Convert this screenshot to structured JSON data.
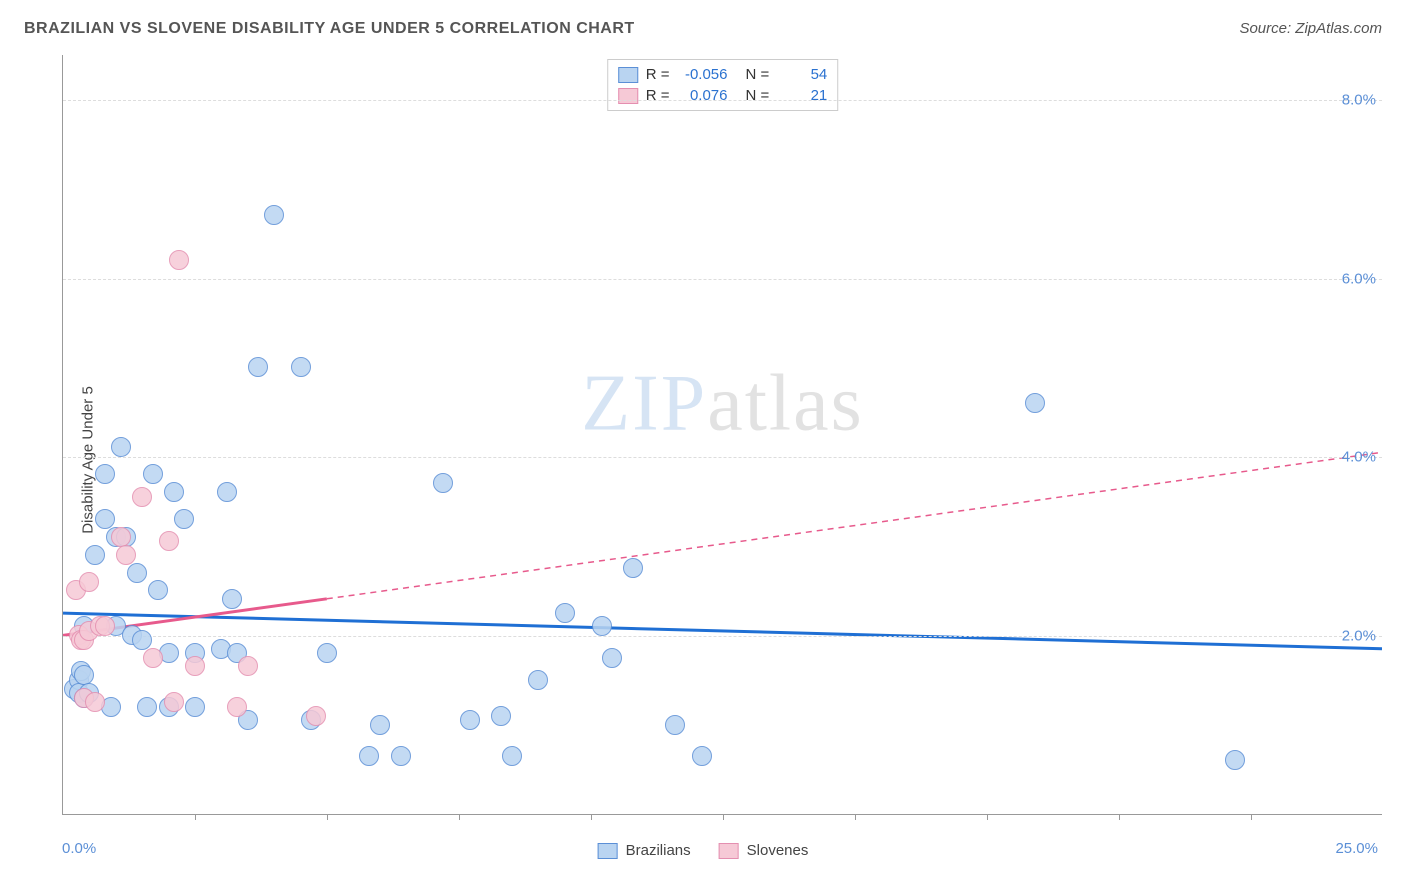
{
  "title": "BRAZILIAN VS SLOVENE DISABILITY AGE UNDER 5 CORRELATION CHART",
  "source": "Source: ZipAtlas.com",
  "ylabel": "Disability Age Under 5",
  "watermark_a": "ZIP",
  "watermark_b": "atlas",
  "chart": {
    "type": "scatter",
    "background_color": "#ffffff",
    "grid_color": "#dddddd",
    "axis_color": "#999999",
    "xlim": [
      0,
      25
    ],
    "ylim": [
      0,
      8.5
    ],
    "xtick_step": 2.5,
    "x_min_label": "0.0%",
    "x_max_label": "25.0%",
    "yticks": [
      {
        "v": 2.0,
        "label": "2.0%"
      },
      {
        "v": 4.0,
        "label": "4.0%"
      },
      {
        "v": 6.0,
        "label": "6.0%"
      },
      {
        "v": 8.0,
        "label": "8.0%"
      }
    ],
    "marker_radius": 10,
    "series": [
      {
        "name": "Brazilians",
        "fill": "#b9d4f1",
        "stroke": "#5b8fd6",
        "trend_color": "#1f6fd4",
        "trend": {
          "y_at_xmin": 2.25,
          "y_at_xmax": 1.85,
          "dash_after_x": 25
        },
        "R": "-0.056",
        "N": "54",
        "points": [
          [
            0.2,
            1.4
          ],
          [
            0.3,
            1.5
          ],
          [
            0.3,
            1.35
          ],
          [
            0.35,
            1.6
          ],
          [
            0.4,
            2.1
          ],
          [
            0.4,
            1.3
          ],
          [
            0.4,
            1.55
          ],
          [
            0.5,
            1.35
          ],
          [
            0.6,
            2.9
          ],
          [
            0.8,
            3.8
          ],
          [
            0.8,
            3.3
          ],
          [
            0.9,
            1.2
          ],
          [
            1.0,
            3.1
          ],
          [
            1.0,
            2.1
          ],
          [
            1.1,
            4.1
          ],
          [
            1.2,
            3.1
          ],
          [
            1.3,
            2.0
          ],
          [
            1.4,
            2.7
          ],
          [
            1.5,
            1.95
          ],
          [
            1.6,
            1.2
          ],
          [
            1.7,
            3.8
          ],
          [
            1.8,
            2.5
          ],
          [
            2.0,
            1.8
          ],
          [
            2.0,
            1.2
          ],
          [
            2.1,
            3.6
          ],
          [
            2.3,
            3.3
          ],
          [
            2.5,
            1.8
          ],
          [
            2.5,
            1.2
          ],
          [
            3.0,
            1.85
          ],
          [
            3.1,
            3.6
          ],
          [
            3.2,
            2.4
          ],
          [
            3.3,
            1.8
          ],
          [
            3.5,
            1.05
          ],
          [
            3.7,
            5.0
          ],
          [
            4.0,
            6.7
          ],
          [
            4.5,
            5.0
          ],
          [
            4.7,
            1.05
          ],
          [
            5.0,
            1.8
          ],
          [
            5.8,
            0.65
          ],
          [
            6.4,
            0.65
          ],
          [
            7.2,
            3.7
          ],
          [
            7.7,
            1.05
          ],
          [
            8.3,
            1.1
          ],
          [
            8.5,
            0.65
          ],
          [
            9.0,
            1.5
          ],
          [
            9.5,
            2.25
          ],
          [
            10.2,
            2.1
          ],
          [
            10.4,
            1.75
          ],
          [
            10.8,
            2.75
          ],
          [
            11.6,
            1.0
          ],
          [
            12.1,
            0.65
          ],
          [
            18.4,
            4.6
          ],
          [
            22.2,
            0.6
          ],
          [
            6.0,
            1.0
          ]
        ]
      },
      {
        "name": "Slovenes",
        "fill": "#f6c9d6",
        "stroke": "#e48fb0",
        "trend_color": "#e75a8c",
        "trend": {
          "y_at_xmin": 2.0,
          "y_at_xmax": 4.05,
          "dash_after_x": 5
        },
        "R": "0.076",
        "N": "21",
        "points": [
          [
            0.25,
            2.5
          ],
          [
            0.3,
            2.0
          ],
          [
            0.35,
            1.95
          ],
          [
            0.4,
            1.3
          ],
          [
            0.4,
            1.95
          ],
          [
            0.5,
            2.05
          ],
          [
            0.5,
            2.6
          ],
          [
            0.6,
            1.25
          ],
          [
            0.7,
            2.1
          ],
          [
            0.8,
            2.1
          ],
          [
            1.1,
            3.1
          ],
          [
            1.2,
            2.9
          ],
          [
            1.5,
            3.55
          ],
          [
            1.7,
            1.75
          ],
          [
            2.0,
            3.05
          ],
          [
            2.1,
            1.25
          ],
          [
            2.2,
            6.2
          ],
          [
            2.5,
            1.65
          ],
          [
            3.3,
            1.2
          ],
          [
            3.5,
            1.65
          ],
          [
            4.8,
            1.1
          ]
        ]
      }
    ]
  },
  "legend_bottom": [
    {
      "label": "Brazilians",
      "fill": "#b9d4f1",
      "stroke": "#5b8fd6"
    },
    {
      "label": "Slovenes",
      "fill": "#f6c9d6",
      "stroke": "#e48fb0"
    }
  ]
}
